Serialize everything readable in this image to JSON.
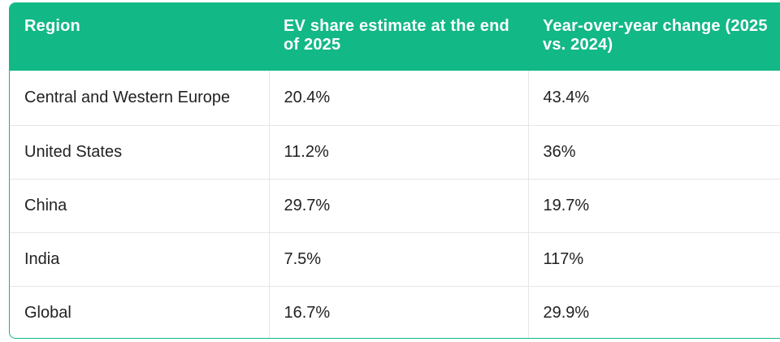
{
  "table": {
    "headers": [
      "Region",
      "EV share estimate at the end of 2025",
      "Year-over-year change (2025 vs. 2024)"
    ],
    "rows": [
      [
        "Central and Western Europe",
        "20.4%",
        "43.4%"
      ],
      [
        "United States",
        "11.2%",
        "36%"
      ],
      [
        "China",
        "29.7%",
        "19.7%"
      ],
      [
        "India",
        "7.5%",
        "117%"
      ],
      [
        "Global",
        "16.7%",
        "29.9%"
      ]
    ]
  },
  "colors": {
    "header_bg": "#12b886",
    "header_text": "#ffffff",
    "cell_text": "#222222",
    "grid": "#e6e6e6"
  }
}
